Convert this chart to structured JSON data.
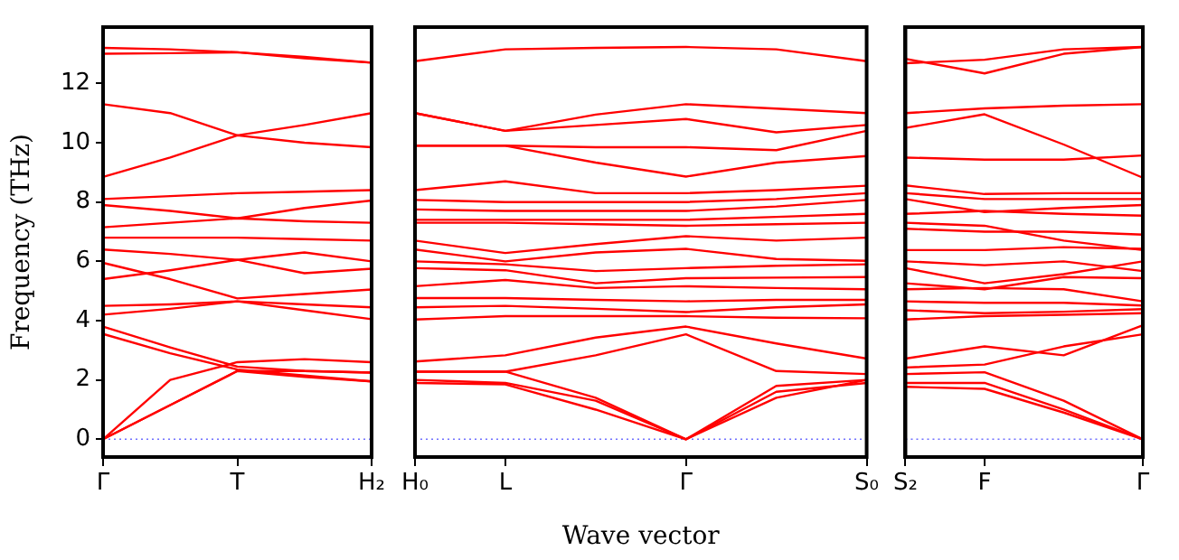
{
  "chart_data": [
    {
      "type": "line",
      "ylabel": "Frequency (THz)",
      "categories": [
        "Γ",
        null,
        "T",
        null,
        "H₂"
      ],
      "ylim": [
        -0.6,
        13.9
      ],
      "yticks": [
        0,
        2,
        4,
        6,
        8,
        10,
        12
      ],
      "grid": false,
      "legend": false,
      "ref_lines": [
        {
          "axis": "y",
          "value": 0,
          "color": "#6f6fff",
          "line_style": "dotted"
        }
      ],
      "series": [
        {
          "color": "#ff0000",
          "values": [
            13.2,
            13.15,
            13.05,
            12.9,
            12.7
          ]
        },
        {
          "color": "#ff0000",
          "values": [
            13.0,
            13.02,
            13.05,
            12.85,
            12.7
          ]
        },
        {
          "color": "#ff0000",
          "values": [
            11.3,
            11.0,
            10.25,
            10.6,
            11.0
          ]
        },
        {
          "color": "#ff0000",
          "values": [
            8.85,
            9.5,
            10.25,
            10.0,
            9.85
          ]
        },
        {
          "color": "#ff0000",
          "values": [
            8.1,
            8.2,
            8.3,
            8.35,
            8.4
          ]
        },
        {
          "color": "#ff0000",
          "values": [
            7.9,
            7.7,
            7.45,
            7.8,
            8.05
          ]
        },
        {
          "color": "#ff0000",
          "values": [
            7.15,
            7.3,
            7.45,
            7.35,
            7.3
          ]
        },
        {
          "color": "#ff0000",
          "values": [
            6.8,
            6.8,
            6.8,
            6.75,
            6.7
          ]
        },
        {
          "color": "#ff0000",
          "values": [
            6.4,
            6.25,
            6.05,
            6.3,
            6.0
          ]
        },
        {
          "color": "#ff0000",
          "values": [
            5.4,
            5.7,
            6.05,
            5.6,
            5.75
          ]
        },
        {
          "color": "#ff0000",
          "values": [
            5.95,
            5.4,
            4.75,
            4.9,
            5.05
          ]
        },
        {
          "color": "#ff0000",
          "values": [
            4.5,
            4.55,
            4.65,
            4.55,
            4.45
          ]
        },
        {
          "color": "#ff0000",
          "values": [
            4.2,
            4.4,
            4.65,
            4.35,
            4.05
          ]
        },
        {
          "color": "#ff0000",
          "values": [
            3.8,
            3.1,
            2.45,
            2.3,
            2.25
          ]
        },
        {
          "color": "#ff0000",
          "values": [
            3.55,
            2.9,
            2.35,
            2.15,
            1.95
          ]
        },
        {
          "color": "#ff0000",
          "values": [
            0,
            2.0,
            2.6,
            2.7,
            2.6
          ]
        },
        {
          "color": "#ff0000",
          "values": [
            0,
            1.15,
            2.3,
            2.3,
            2.25
          ]
        },
        {
          "color": "#ff0000",
          "values": [
            0,
            1.15,
            2.3,
            2.1,
            1.95
          ]
        }
      ]
    },
    {
      "type": "line",
      "xlabel": "Wave vector",
      "categories": [
        "H₀",
        "L",
        null,
        "Γ",
        null,
        "S₀"
      ],
      "ylim": [
        -0.6,
        13.9
      ],
      "tick_labels": "x",
      "grid": false,
      "legend": false,
      "ref_lines": [
        {
          "axis": "y",
          "value": 0,
          "color": "#6f6fff",
          "line_style": "dotted"
        }
      ],
      "series": [
        {
          "color": "#ff0000",
          "values": [
            12.75,
            13.15,
            13.2,
            13.23,
            13.15,
            12.75
          ]
        },
        {
          "color": "#ff0000",
          "values": [
            11.0,
            10.4,
            10.95,
            11.3,
            11.15,
            11.0
          ]
        },
        {
          "color": "#ff0000",
          "values": [
            11.0,
            10.4,
            10.6,
            10.8,
            10.35,
            10.6
          ]
        },
        {
          "color": "#ff0000",
          "values": [
            9.9,
            9.9,
            9.85,
            9.85,
            9.75,
            10.4
          ]
        },
        {
          "color": "#ff0000",
          "values": [
            9.9,
            9.9,
            9.33,
            8.86,
            9.33,
            9.55
          ]
        },
        {
          "color": "#ff0000",
          "values": [
            8.4,
            8.7,
            8.3,
            8.3,
            8.4,
            8.55
          ]
        },
        {
          "color": "#ff0000",
          "values": [
            8.07,
            8.0,
            8.0,
            8.0,
            8.1,
            8.3
          ]
        },
        {
          "color": "#ff0000",
          "values": [
            7.75,
            7.7,
            7.7,
            7.7,
            7.85,
            8.07
          ]
        },
        {
          "color": "#ff0000",
          "values": [
            7.4,
            7.4,
            7.4,
            7.4,
            7.5,
            7.6
          ]
        },
        {
          "color": "#ff0000",
          "values": [
            7.3,
            7.3,
            7.25,
            7.2,
            7.25,
            7.3
          ]
        },
        {
          "color": "#ff0000",
          "values": [
            6.7,
            6.28,
            6.58,
            6.85,
            6.7,
            6.8
          ]
        },
        {
          "color": "#ff0000",
          "values": [
            6.4,
            6.0,
            6.3,
            6.42,
            6.08,
            6.02
          ]
        },
        {
          "color": "#ff0000",
          "values": [
            6.0,
            5.9,
            5.67,
            5.77,
            5.85,
            5.9
          ]
        },
        {
          "color": "#ff0000",
          "values": [
            5.77,
            5.7,
            5.26,
            5.43,
            5.45,
            5.47
          ]
        },
        {
          "color": "#ff0000",
          "values": [
            5.16,
            5.37,
            5.1,
            5.16,
            5.1,
            5.06
          ]
        },
        {
          "color": "#ff0000",
          "values": [
            4.76,
            4.76,
            4.7,
            4.65,
            4.7,
            4.7
          ]
        },
        {
          "color": "#ff0000",
          "values": [
            4.45,
            4.5,
            4.4,
            4.29,
            4.45,
            4.55
          ]
        },
        {
          "color": "#ff0000",
          "values": [
            4.04,
            4.15,
            4.15,
            4.15,
            4.1,
            4.08
          ]
        },
        {
          "color": "#ff0000",
          "values": [
            2.62,
            2.83,
            3.43,
            3.8,
            3.23,
            2.72
          ]
        },
        {
          "color": "#ff0000",
          "values": [
            2.28,
            2.28,
            2.83,
            3.54,
            2.3,
            2.2
          ]
        },
        {
          "color": "#ff0000",
          "values": [
            2.0,
            1.9,
            1.3,
            0,
            1.8,
            2.0
          ]
        },
        {
          "color": "#ff0000",
          "values": [
            2.28,
            2.28,
            1.4,
            0,
            1.6,
            1.9
          ]
        },
        {
          "color": "#ff0000",
          "values": [
            1.9,
            1.85,
            1.0,
            0,
            1.4,
            2.0
          ]
        }
      ]
    },
    {
      "type": "line",
      "categories": [
        "S₂",
        "F",
        null,
        "Γ"
      ],
      "ylim": [
        -0.6,
        13.9
      ],
      "tick_labels": "x",
      "grid": false,
      "legend": false,
      "ref_lines": [
        {
          "axis": "y",
          "value": 0,
          "color": "#6f6fff",
          "line_style": "dotted"
        }
      ],
      "series": [
        {
          "color": "#ff0000",
          "values": [
            12.83,
            12.34,
            13.0,
            13.23
          ]
        },
        {
          "color": "#ff0000",
          "values": [
            12.68,
            12.8,
            13.15,
            13.23
          ]
        },
        {
          "color": "#ff0000",
          "values": [
            11.0,
            11.16,
            11.25,
            11.3
          ]
        },
        {
          "color": "#ff0000",
          "values": [
            10.5,
            10.96,
            9.94,
            8.82
          ]
        },
        {
          "color": "#ff0000",
          "values": [
            9.5,
            9.43,
            9.43,
            9.57
          ]
        },
        {
          "color": "#ff0000",
          "values": [
            8.56,
            8.27,
            8.3,
            8.3
          ]
        },
        {
          "color": "#ff0000",
          "values": [
            8.3,
            8.1,
            8.1,
            8.1
          ]
        },
        {
          "color": "#ff0000",
          "values": [
            8.1,
            7.66,
            7.8,
            7.9
          ]
        },
        {
          "color": "#ff0000",
          "values": [
            7.6,
            7.7,
            7.6,
            7.54
          ]
        },
        {
          "color": "#ff0000",
          "values": [
            7.3,
            7.2,
            6.7,
            6.38
          ]
        },
        {
          "color": "#ff0000",
          "values": [
            7.1,
            7.0,
            7.0,
            6.9
          ]
        },
        {
          "color": "#ff0000",
          "values": [
            6.38,
            6.38,
            6.48,
            6.42
          ]
        },
        {
          "color": "#ff0000",
          "values": [
            6.0,
            5.87,
            6.0,
            5.67
          ]
        },
        {
          "color": "#ff0000",
          "values": [
            5.77,
            5.26,
            5.57,
            6.0
          ]
        },
        {
          "color": "#ff0000",
          "values": [
            5.26,
            5.06,
            5.47,
            5.43
          ]
        },
        {
          "color": "#ff0000",
          "values": [
            5.06,
            5.1,
            5.06,
            4.65
          ]
        },
        {
          "color": "#ff0000",
          "values": [
            4.65,
            4.6,
            4.6,
            4.51
          ]
        },
        {
          "color": "#ff0000",
          "values": [
            4.35,
            4.25,
            4.3,
            4.39
          ]
        },
        {
          "color": "#ff0000",
          "values": [
            4.04,
            4.15,
            4.2,
            4.25
          ]
        },
        {
          "color": "#ff0000",
          "values": [
            2.72,
            3.13,
            2.83,
            3.84
          ]
        },
        {
          "color": "#ff0000",
          "values": [
            2.42,
            2.52,
            3.13,
            3.54
          ]
        },
        {
          "color": "#ff0000",
          "values": [
            2.2,
            2.26,
            1.3,
            0
          ]
        },
        {
          "color": "#ff0000",
          "values": [
            1.9,
            1.9,
            1.0,
            0
          ]
        },
        {
          "color": "#ff0000",
          "values": [
            1.77,
            1.7,
            0.9,
            0
          ]
        }
      ]
    }
  ]
}
